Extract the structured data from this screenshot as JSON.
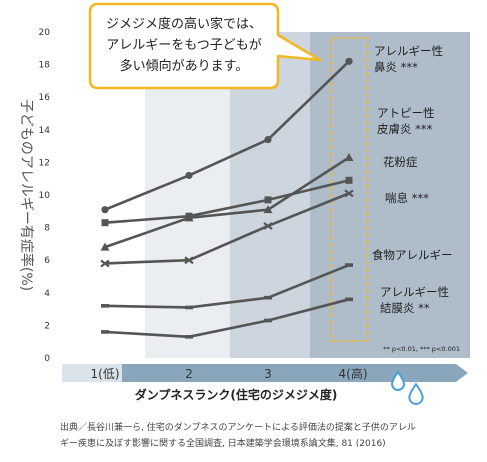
{
  "chart_data": {
    "type": "line",
    "ylabel": "子どものアレルギー有症率(%)",
    "xlabel": "ダンプネスランク(住宅のジメジメ度)",
    "categories": [
      "1(低)",
      "2",
      "3",
      "4(高)"
    ],
    "ylim": [
      0,
      20
    ],
    "yticks": [
      0,
      2,
      4,
      6,
      8,
      10,
      12,
      14,
      16,
      18,
      20
    ],
    "grid": false,
    "series": [
      {
        "name": "アレルギー性鼻炎 ***",
        "label_lines": [
          "アレルギー性",
          "鼻炎 ***"
        ],
        "marker": "circle",
        "values": [
          9.1,
          11.2,
          13.4,
          18.2
        ]
      },
      {
        "name": "アトピー性皮膚炎 ***",
        "label_lines": [
          "アトピー性",
          "皮膚炎 ***"
        ],
        "marker": "triangle",
        "values": [
          6.8,
          8.6,
          9.1,
          12.3
        ]
      },
      {
        "name": "花粉症",
        "label_lines": [
          "花粉症"
        ],
        "marker": "square",
        "values": [
          8.3,
          8.7,
          9.7,
          10.9
        ]
      },
      {
        "name": "喘息 ***",
        "label_lines": [
          "喘息 ***"
        ],
        "marker": "diamond",
        "values": [
          5.8,
          6.0,
          8.1,
          10.1
        ]
      },
      {
        "name": "食物アレルギー",
        "label_lines": [
          "食物アレルギー"
        ],
        "marker": "dash",
        "values": [
          3.2,
          3.1,
          3.7,
          5.7
        ]
      },
      {
        "name": "アレルギー性結膜炎 **",
        "label_lines": [
          "アレルギー性",
          "結膜炎 **"
        ],
        "marker": "dash",
        "values": [
          1.6,
          1.3,
          2.3,
          3.6
        ]
      }
    ],
    "significance_note": "** p<0.01, *** p<0.001",
    "callout_lines": [
      "ジメジメ度の高い家では、",
      "アレルギーをもつ子どもが",
      "多い傾向があります。"
    ],
    "colors": {
      "line": "#555555",
      "band_1": "#ffffff",
      "band_2": "#eaeef1",
      "band_3": "#cdd6de",
      "band_4": "#aebdc9",
      "axis_arrow": "#8aa6bd",
      "callout_border": "#f3b722",
      "highlight_dash": "#f3b722",
      "drop": "#4a9fd8"
    }
  },
  "source": {
    "lines": [
      "出典／長谷川兼一ら, 住宅のダンプネスのアンケートによる評価法の提案と子供のアレル",
      "ギー疾患に及ぼす影響に関する全国調査, 日本建築学会環境系論文集, 81 (2016)"
    ]
  }
}
